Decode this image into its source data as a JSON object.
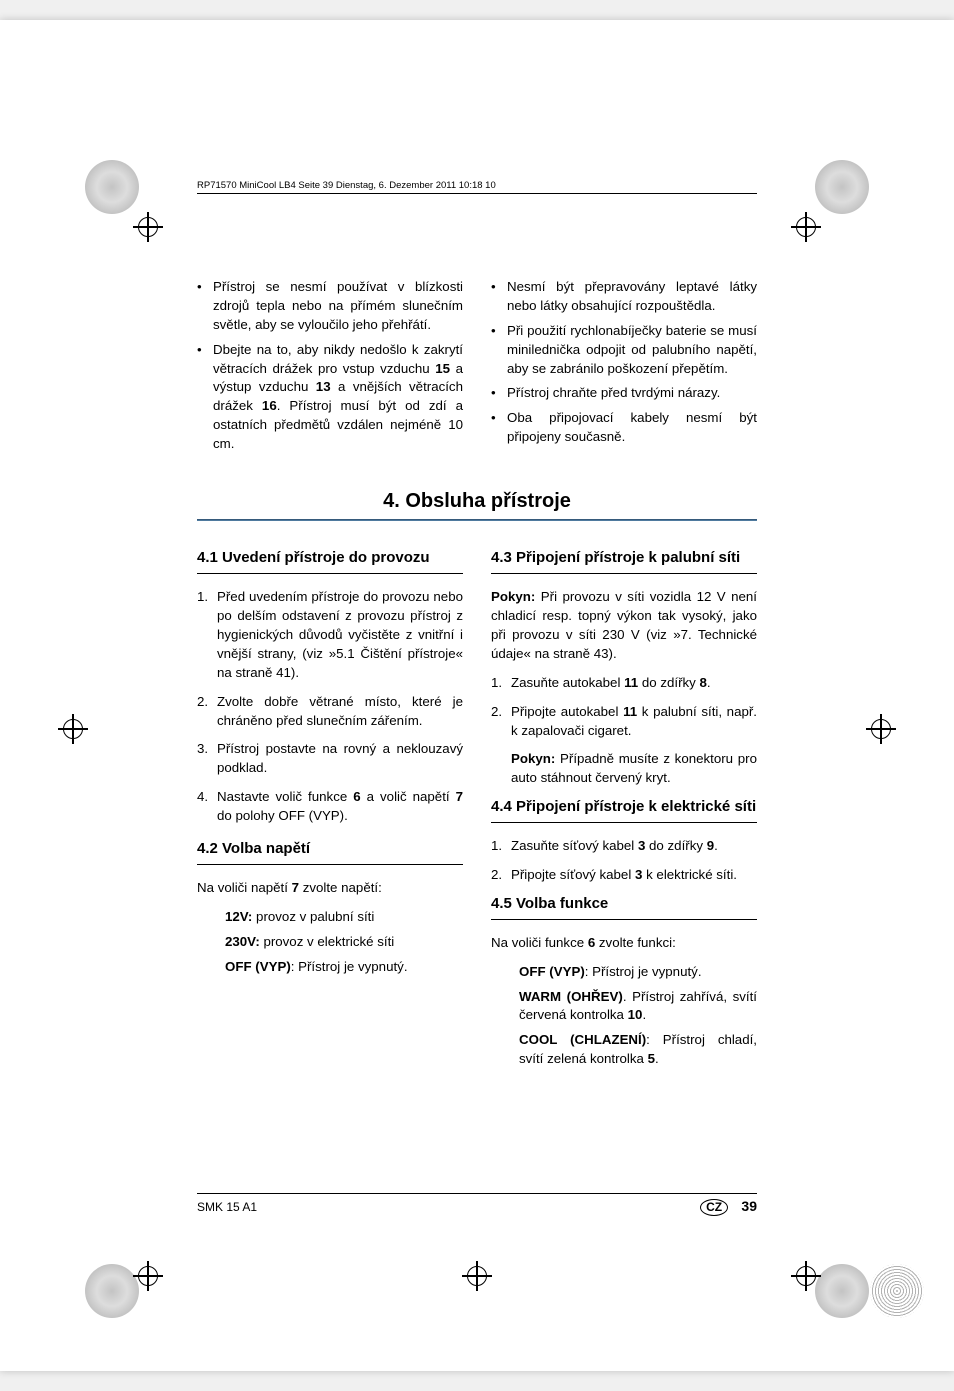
{
  "running_head": "RP71570 MiniCool LB4  Seite 39  Dienstag, 6. Dezember 2011  10:18 10",
  "top": {
    "left_bullets": [
      "Přístroj se nesmí používat v blízkosti zdrojů tepla nebo na přímém slunečním světle, aby se vyloučilo jeho přehřátí.",
      "Dbejte na to, aby nikdy nedošlo k zakrytí větracích drážek pro vstup vzduchu <b>15</b> a výstup vzduchu <b>13</b> a vnějších větracích drážek <b>16</b>. Přístroj musí být od zdí a ostatních předmětů vzdálen nejméně 10 cm."
    ],
    "right_bullets": [
      "Nesmí být přepravovány leptavé látky nebo látky obsahující rozpouštědla.",
      "Při použití rychlonabíječky baterie se musí minilednička odpojit od palubního napětí, aby se zabránilo poškození přepětím.",
      "Přístroj chraňte před tvrdými nárazy.",
      "Oba připojovací kabely nesmí být připojeny současně."
    ]
  },
  "section_title": "4. Obsluha přístroje",
  "left": {
    "h41": "4.1 Uvedení přístroje do provozu",
    "ol41": [
      "Před uvedením přístroje do provozu nebo po delším odstavení z provozu přístroj z hygienických důvodů vyčistěte z vnitřní i vnější strany, (viz »5.1 Čištění přístroje« na straně 41).",
      "Zvolte dobře větrané místo, které je chráněno před slunečním zářením.",
      "Přístroj postavte na rovný a neklouzavý podklad.",
      "Nastavte volič funkce <b>6</b> a volič napětí <b>7</b> do polohy OFF (VYP)."
    ],
    "h42": "4.2 Volba napětí",
    "p42_intro": "Na voliči napětí <b>7</b> zvolte napětí:",
    "p42_12v": "<b>12V:</b> provoz v palubní síti",
    "p42_230v": "<b>230V:</b> provoz v elektrické síti",
    "p42_off": "<b>OFF (VYP)</b>: Přístroj je vypnutý."
  },
  "right": {
    "h43": "4.3 Připojení přístroje k palubní síti",
    "p43_note": "<b>Pokyn:</b> Při provozu v síti vozidla 12 V není chladicí resp. topný výkon tak vysoký, jako při provozu v síti 230 V (viz »7. Technické údaje« na straně 43).",
    "ol43": [
      "Zasuňte autokabel <b>11</b> do zdířky <b>8</b>.",
      "Připojte autokabel <b>11</b> k palubní síti, např. k zapalovači cigaret."
    ],
    "p43_note2": "<b>Pokyn:</b> Případně musíte z konektoru pro auto stáhnout červený kryt.",
    "h44": "4.4 Připojení přístroje k elektrické síti",
    "ol44": [
      "Zasuňte síťový kabel <b>3</b> do zdířky <b>9</b>.",
      "Připojte síťový kabel <b>3</b> k elektrické síti."
    ],
    "h45": "4.5 Volba funkce",
    "p45_intro": "Na voliči funkce <b>6</b> zvolte funkci:",
    "p45_off": "<b>OFF (VYP)</b>: Přístroj je vypnutý.",
    "p45_warm": "<b>WARM (OHŘEV)</b>. Přístroj zahřívá, svítí červená kontrolka <b>10</b>.",
    "p45_cool": "<b>COOL (CHLAZENÍ)</b>: Přístroj chladí, svítí zelená kontrolka <b>5</b>."
  },
  "footer": {
    "model": "SMK 15 A1",
    "country": "CZ",
    "page": "39"
  },
  "colors": {
    "hr_gradient_top": "#2a4a6a",
    "hr_gradient_bottom": "#5b8ab0",
    "text": "#000000",
    "background": "#ffffff"
  },
  "typography": {
    "body_pt": 10,
    "subhead_pt": 11.5,
    "section_title_pt": 15,
    "running_head_pt": 7.5
  }
}
